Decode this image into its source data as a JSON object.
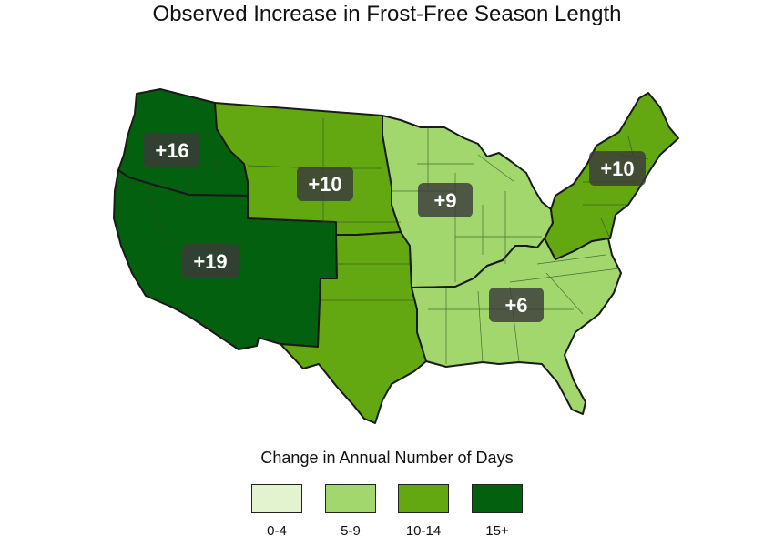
{
  "title": "Observed Increase in Frost-Free Season Length",
  "colors": {
    "c0_4": "#e3f3cf",
    "c5_9": "#a2d76e",
    "c10_14": "#63a811",
    "c15plus": "#03600f"
  },
  "regions": [
    {
      "name": "Northwest",
      "change_days": "+16",
      "color_key": "c15plus"
    },
    {
      "name": "Southwest",
      "change_days": "+19",
      "color_key": "c15plus"
    },
    {
      "name": "Great Plains North",
      "change_days": "+10",
      "color_key": "c10_14"
    },
    {
      "name": "Great Plains South",
      "change_days": "",
      "color_key": "c10_14"
    },
    {
      "name": "Midwest",
      "change_days": "+9",
      "color_key": "c5_9"
    },
    {
      "name": "Southeast",
      "change_days": "+6",
      "color_key": "c5_9"
    },
    {
      "name": "Northeast",
      "change_days": "+10",
      "color_key": "c10_14"
    }
  ],
  "legend": {
    "title": "Change in Annual Number of Days",
    "items": [
      {
        "label": "0-4",
        "color_key": "c0_4"
      },
      {
        "label": "5-9",
        "color_key": "c5_9"
      },
      {
        "label": "10-14",
        "color_key": "c10_14"
      },
      {
        "label": "15+",
        "color_key": "c15plus"
      }
    ]
  }
}
